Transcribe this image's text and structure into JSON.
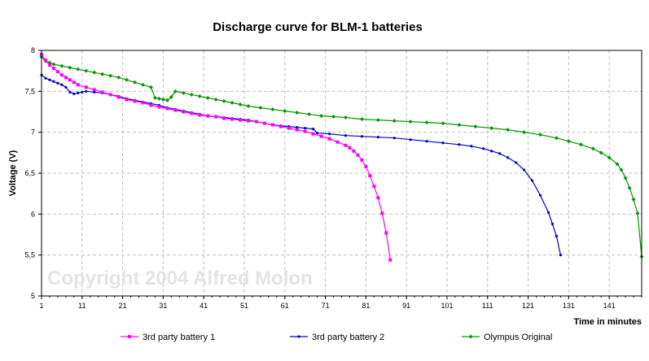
{
  "chart_data": {
    "type": "line",
    "title": "Discharge curve for BLM-1 batteries",
    "xlabel": "Time in minutes",
    "ylabel": "Voltage (V)",
    "watermark": "Copyright 2004 Alfred Molon",
    "xlim": [
      1,
      149
    ],
    "ylim": [
      5,
      8
    ],
    "x_ticks": [
      1,
      11,
      21,
      31,
      41,
      51,
      61,
      71,
      81,
      91,
      101,
      111,
      121,
      131,
      141
    ],
    "x_tick_labels": [
      "1",
      "11",
      "21",
      "31",
      "41",
      "51",
      "61",
      "71",
      "81",
      "91",
      "101",
      "111",
      "121",
      "131",
      "141"
    ],
    "y_ticks": [
      5,
      5.5,
      6,
      6.5,
      7,
      7.5,
      8
    ],
    "y_tick_labels": [
      "5",
      "5,5",
      "6",
      "6,5",
      "7",
      "7,5",
      "8"
    ],
    "grid": true,
    "legend_position": "bottom",
    "series": [
      {
        "name": "3rd party battery 1",
        "color": "#ff00ff",
        "marker": "square",
        "points": [
          [
            1,
            7.95
          ],
          [
            2,
            7.88
          ],
          [
            3,
            7.82
          ],
          [
            4,
            7.78
          ],
          [
            5,
            7.74
          ],
          [
            6,
            7.7
          ],
          [
            7,
            7.67
          ],
          [
            8,
            7.64
          ],
          [
            9,
            7.61
          ],
          [
            10,
            7.58
          ],
          [
            12,
            7.55
          ],
          [
            14,
            7.52
          ],
          [
            16,
            7.49
          ],
          [
            18,
            7.46
          ],
          [
            20,
            7.43
          ],
          [
            22,
            7.4
          ],
          [
            24,
            7.38
          ],
          [
            26,
            7.36
          ],
          [
            28,
            7.33
          ],
          [
            30,
            7.31
          ],
          [
            32,
            7.29
          ],
          [
            34,
            7.27
          ],
          [
            36,
            7.25
          ],
          [
            38,
            7.23
          ],
          [
            40,
            7.21
          ],
          [
            42,
            7.2
          ],
          [
            44,
            7.19
          ],
          [
            46,
            7.17
          ],
          [
            48,
            7.16
          ],
          [
            50,
            7.15
          ],
          [
            52,
            7.14
          ],
          [
            54,
            7.13
          ],
          [
            56,
            7.11
          ],
          [
            58,
            7.09
          ],
          [
            60,
            7.07
          ],
          [
            62,
            7.05
          ],
          [
            64,
            7.03
          ],
          [
            66,
            7.01
          ],
          [
            68,
            6.98
          ],
          [
            70,
            6.95
          ],
          [
            72,
            6.92
          ],
          [
            74,
            6.88
          ],
          [
            76,
            6.84
          ],
          [
            77,
            6.81
          ],
          [
            78,
            6.77
          ],
          [
            79,
            6.72
          ],
          [
            80,
            6.66
          ],
          [
            81,
            6.58
          ],
          [
            82,
            6.47
          ],
          [
            83,
            6.34
          ],
          [
            84,
            6.2
          ],
          [
            85,
            6.01
          ],
          [
            86,
            5.77
          ],
          [
            87,
            5.44
          ]
        ]
      },
      {
        "name": "3rd party battery 2",
        "color": "#0000cc",
        "marker": "dot",
        "points": [
          [
            1,
            7.7
          ],
          [
            2,
            7.66
          ],
          [
            3,
            7.64
          ],
          [
            4,
            7.62
          ],
          [
            5,
            7.6
          ],
          [
            6,
            7.58
          ],
          [
            7,
            7.55
          ],
          [
            8,
            7.49
          ],
          [
            9,
            7.47
          ],
          [
            10,
            7.48
          ],
          [
            11,
            7.49
          ],
          [
            12,
            7.5
          ],
          [
            14,
            7.49
          ],
          [
            16,
            7.48
          ],
          [
            18,
            7.46
          ],
          [
            20,
            7.44
          ],
          [
            22,
            7.41
          ],
          [
            24,
            7.39
          ],
          [
            26,
            7.37
          ],
          [
            28,
            7.35
          ],
          [
            30,
            7.33
          ],
          [
            32,
            7.3
          ],
          [
            34,
            7.28
          ],
          [
            36,
            7.26
          ],
          [
            38,
            7.24
          ],
          [
            40,
            7.22
          ],
          [
            42,
            7.2
          ],
          [
            44,
            7.19
          ],
          [
            46,
            7.18
          ],
          [
            48,
            7.17
          ],
          [
            50,
            7.16
          ],
          [
            52,
            7.15
          ],
          [
            54,
            7.13
          ],
          [
            56,
            7.11
          ],
          [
            58,
            7.09
          ],
          [
            60,
            7.08
          ],
          [
            62,
            7.07
          ],
          [
            64,
            7.06
          ],
          [
            66,
            7.05
          ],
          [
            68,
            7.04
          ],
          [
            69,
            6.99
          ],
          [
            72,
            6.98
          ],
          [
            76,
            6.96
          ],
          [
            80,
            6.95
          ],
          [
            84,
            6.94
          ],
          [
            88,
            6.93
          ],
          [
            92,
            6.91
          ],
          [
            96,
            6.89
          ],
          [
            100,
            6.87
          ],
          [
            104,
            6.85
          ],
          [
            107,
            6.83
          ],
          [
            110,
            6.8
          ],
          [
            112,
            6.77
          ],
          [
            114,
            6.74
          ],
          [
            116,
            6.69
          ],
          [
            118,
            6.63
          ],
          [
            120,
            6.54
          ],
          [
            122,
            6.41
          ],
          [
            124,
            6.23
          ],
          [
            126,
            6.02
          ],
          [
            127,
            5.88
          ],
          [
            128,
            5.73
          ],
          [
            129,
            5.5
          ]
        ]
      },
      {
        "name": "Olympus Original",
        "color": "#009900",
        "marker": "diamond",
        "points": [
          [
            1,
            7.92
          ],
          [
            2,
            7.87
          ],
          [
            3,
            7.85
          ],
          [
            4,
            7.83
          ],
          [
            6,
            7.81
          ],
          [
            8,
            7.79
          ],
          [
            10,
            7.77
          ],
          [
            12,
            7.75
          ],
          [
            14,
            7.73
          ],
          [
            16,
            7.71
          ],
          [
            18,
            7.69
          ],
          [
            20,
            7.67
          ],
          [
            22,
            7.64
          ],
          [
            24,
            7.61
          ],
          [
            26,
            7.58
          ],
          [
            28,
            7.55
          ],
          [
            29,
            7.42
          ],
          [
            30,
            7.41
          ],
          [
            31,
            7.4
          ],
          [
            32,
            7.39
          ],
          [
            33,
            7.43
          ],
          [
            34,
            7.5
          ],
          [
            36,
            7.48
          ],
          [
            38,
            7.46
          ],
          [
            40,
            7.44
          ],
          [
            42,
            7.42
          ],
          [
            44,
            7.4
          ],
          [
            46,
            7.38
          ],
          [
            48,
            7.36
          ],
          [
            50,
            7.34
          ],
          [
            52,
            7.32
          ],
          [
            55,
            7.3
          ],
          [
            58,
            7.28
          ],
          [
            61,
            7.26
          ],
          [
            64,
            7.24
          ],
          [
            67,
            7.22
          ],
          [
            70,
            7.2
          ],
          [
            73,
            7.19
          ],
          [
            76,
            7.18
          ],
          [
            80,
            7.16
          ],
          [
            84,
            7.15
          ],
          [
            88,
            7.14
          ],
          [
            92,
            7.13
          ],
          [
            96,
            7.12
          ],
          [
            100,
            7.11
          ],
          [
            104,
            7.09
          ],
          [
            108,
            7.07
          ],
          [
            112,
            7.05
          ],
          [
            116,
            7.03
          ],
          [
            120,
            7.0
          ],
          [
            124,
            6.97
          ],
          [
            128,
            6.93
          ],
          [
            131,
            6.89
          ],
          [
            134,
            6.85
          ],
          [
            137,
            6.8
          ],
          [
            139,
            6.75
          ],
          [
            141,
            6.69
          ],
          [
            143,
            6.61
          ],
          [
            144,
            6.54
          ],
          [
            145,
            6.44
          ],
          [
            146,
            6.32
          ],
          [
            147,
            6.18
          ],
          [
            148,
            6.01
          ],
          [
            149,
            5.48
          ]
        ]
      }
    ]
  }
}
